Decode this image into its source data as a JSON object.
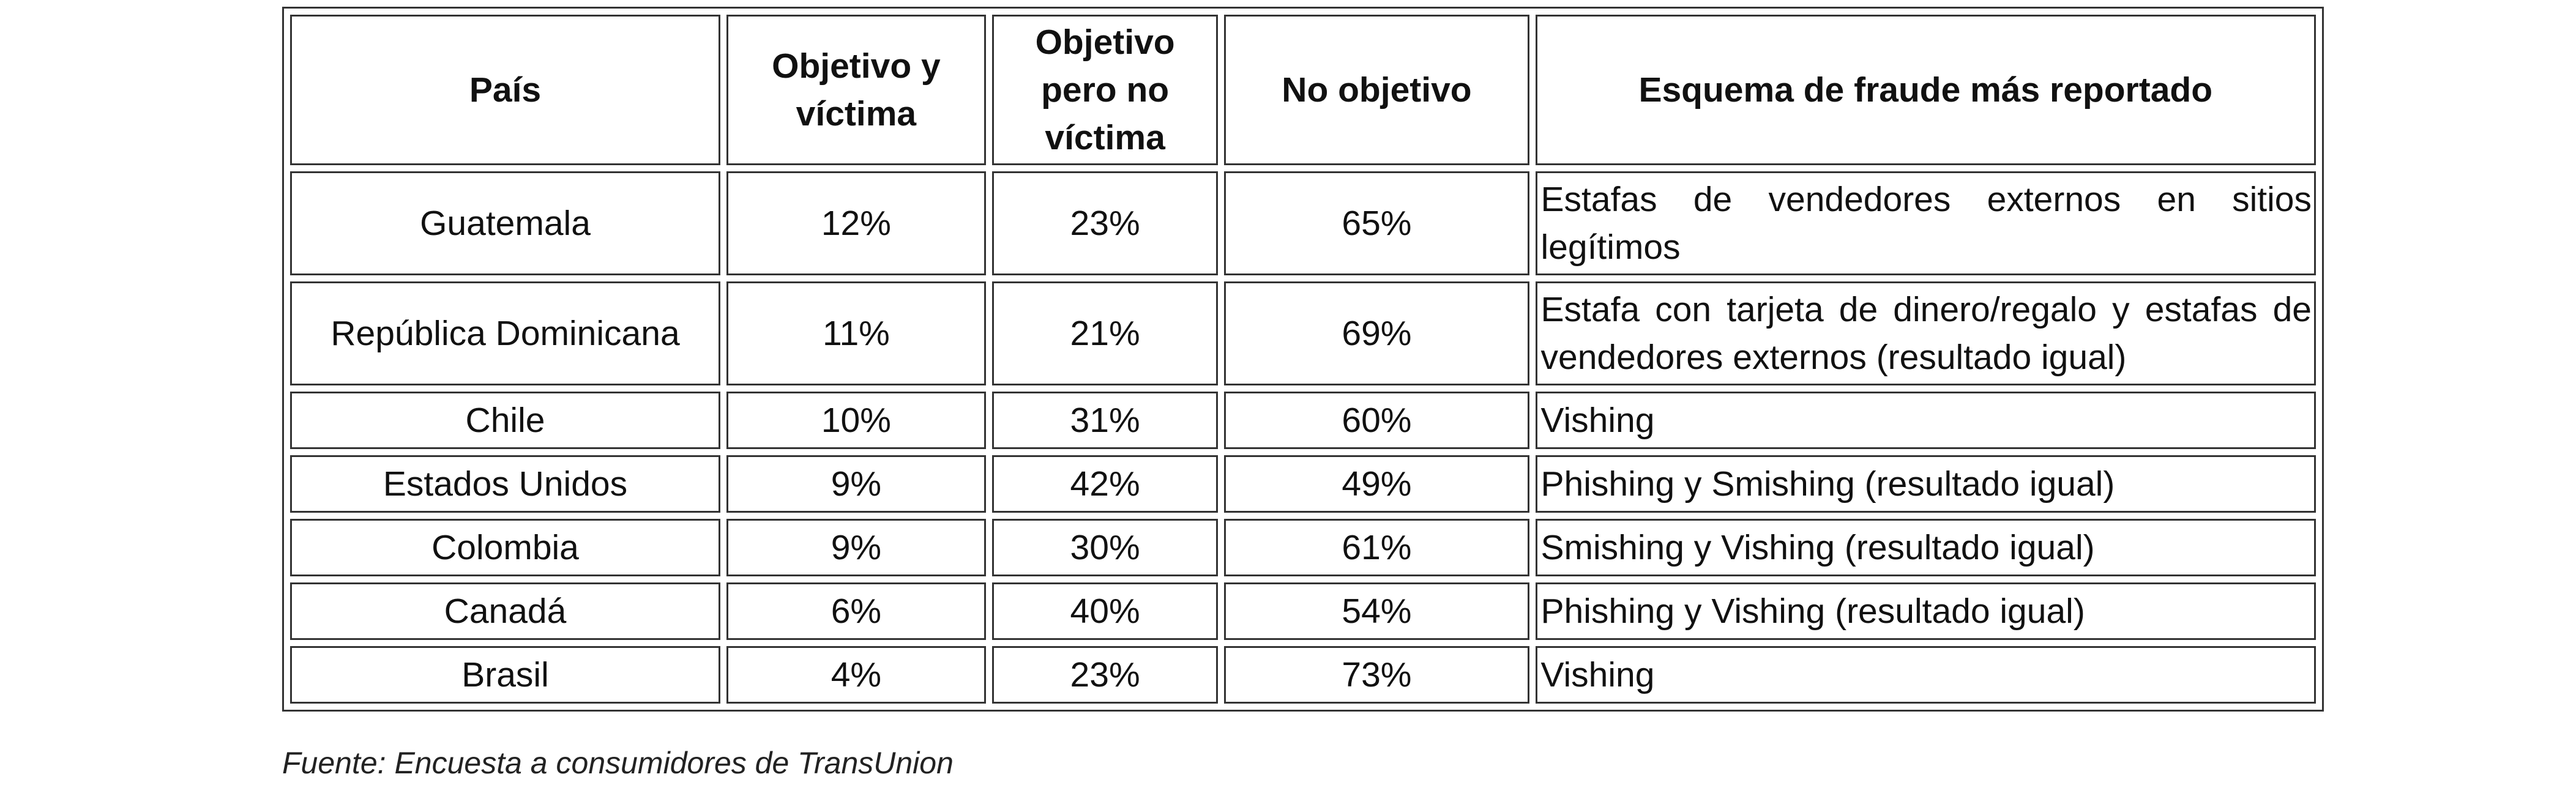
{
  "table": {
    "headers": {
      "country": "País",
      "target_and_victim": "Objetivo y víctima",
      "target_not_victim": "Objetivo pero no víctima",
      "not_target": "No objetivo",
      "top_scheme": "Esquema de fraude más reportado"
    },
    "rows": [
      {
        "country": "Guatemala",
        "target_and_victim": "12%",
        "target_not_victim": "23%",
        "not_target": "65%",
        "top_scheme": "Estafas de vendedores externos en sitios legítimos"
      },
      {
        "country": "República Dominicana",
        "target_and_victim": "11%",
        "target_not_victim": "21%",
        "not_target": "69%",
        "top_scheme": "Estafa con tarjeta de dinero/regalo y estafas de vendedores externos (resultado igual)"
      },
      {
        "country": "Chile",
        "target_and_victim": "10%",
        "target_not_victim": "31%",
        "not_target": "60%",
        "top_scheme": "Vishing"
      },
      {
        "country": "Estados Unidos",
        "target_and_victim": "9%",
        "target_not_victim": "42%",
        "not_target": "49%",
        "top_scheme": "Phishing y Smishing (resultado igual)"
      },
      {
        "country": "Colombia",
        "target_and_victim": "9%",
        "target_not_victim": "30%",
        "not_target": "61%",
        "top_scheme": "Smishing y Vishing (resultado igual)"
      },
      {
        "country": "Canadá",
        "target_and_victim": "6%",
        "target_not_victim": "40%",
        "not_target": "54%",
        "top_scheme": "Phishing y Vishing (resultado igual)"
      },
      {
        "country": "Brasil",
        "target_and_victim": "4%",
        "target_not_victim": "23%",
        "not_target": "73%",
        "top_scheme": "Vishing"
      }
    ]
  },
  "source": "Fuente: Encuesta a consumidores de TransUnion"
}
